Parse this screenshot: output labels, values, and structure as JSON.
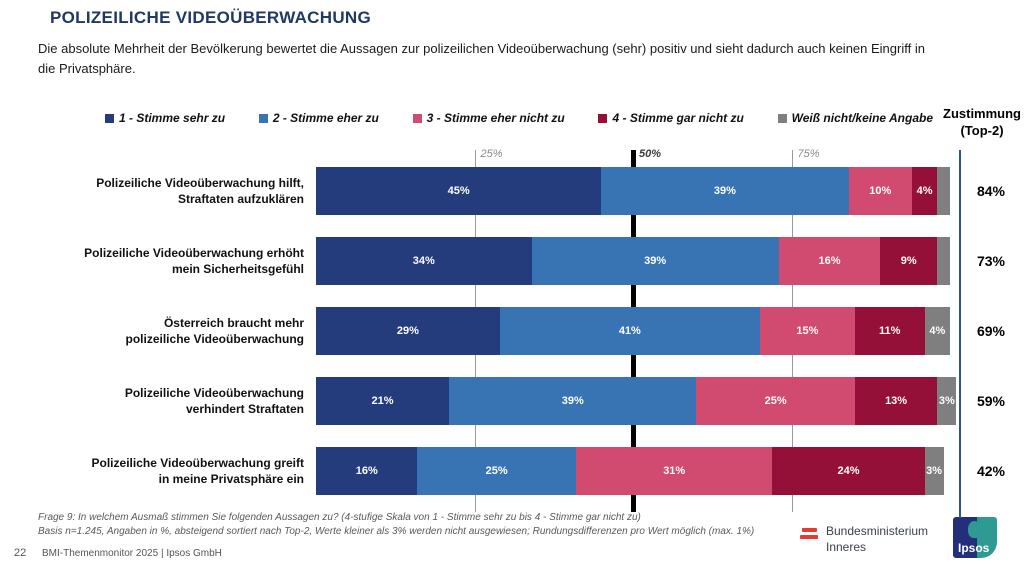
{
  "slide": {
    "title": "POLIZEILICHE VIDEOÜBERWACHUNG",
    "subtitle": "Die absolute Mehrheit der Bevölkerung bewertet die Aussagen zur polizeilichen Videoüberwachung (sehr) positiv und sieht dadurch auch keinen Eingriff in die Privatsphäre.",
    "footnote_line1": "Frage 9:  In welchem Ausmaß stimmen Sie folgenden Aussagen zu? (4-stufige Skala von 1 - Stimme sehr zu bis 4 - Stimme gar nicht zu)",
    "footnote_line2": "Basis n=1.245, Angaben in %, absteigend sortiert nach Top-2, Werte kleiner als 3% werden nicht ausgewiesen; Rundungsdifferenzen pro Wert möglich (max. 1%)",
    "page_number": "22",
    "footer_text": "BMI-Themenmonitor 2025 |  Ipsos GmbH"
  },
  "logos": {
    "ministry_line1": "Bundesministerium",
    "ministry_line2": "Inneres",
    "ipsos": "Ipsos"
  },
  "chart_data": {
    "type": "bar",
    "stacked": true,
    "orientation": "horizontal",
    "x_range": [
      0,
      100
    ],
    "unit": "%",
    "legend_position": "top",
    "top2_header": [
      "Zustimmung",
      "(Top-2)"
    ],
    "gridlines": [
      {
        "label": "25%",
        "position": 25,
        "emphasis": false
      },
      {
        "label": "50%",
        "position": 50,
        "emphasis": true
      },
      {
        "label": "75%",
        "position": 75,
        "emphasis": false
      }
    ],
    "categories": [
      {
        "lines": [
          "Polizeiliche Videoüberwachung hilft,",
          "Straftaten aufzuklären"
        ]
      },
      {
        "lines": [
          "Polizeiliche Videoüberwachung erhöht",
          "mein Sicherheitsgefühl"
        ]
      },
      {
        "lines": [
          "Österreich braucht mehr",
          "polizeiliche Videoüberwachung"
        ]
      },
      {
        "lines": [
          "Polizeiliche Videoüberwachung",
          "verhindert Straftaten"
        ]
      },
      {
        "lines": [
          "Polizeiliche Videoüberwachung greift",
          "in meine Privatsphäre ein"
        ]
      }
    ],
    "series": [
      {
        "name": "1 - Stimme sehr zu",
        "color": "#253C7C",
        "values": [
          45,
          34,
          29,
          21,
          16
        ],
        "labels": [
          "45%",
          "34%",
          "29%",
          "21%",
          "16%"
        ]
      },
      {
        "name": "2 - Stimme eher zu",
        "color": "#3873B4",
        "values": [
          39,
          39,
          41,
          39,
          25
        ],
        "labels": [
          "39%",
          "39%",
          "41%",
          "39%",
          "25%"
        ]
      },
      {
        "name": "3 - Stimme eher nicht zu",
        "color": "#D14A6F",
        "values": [
          10,
          16,
          15,
          25,
          31
        ],
        "labels": [
          "10%",
          "16%",
          "15%",
          "25%",
          "31%"
        ]
      },
      {
        "name": "4 - Stimme gar nicht zu",
        "color": "#951038",
        "values": [
          4,
          9,
          11,
          13,
          24
        ],
        "labels": [
          "4%",
          "9%",
          "11%",
          "13%",
          "24%"
        ]
      },
      {
        "name": "Weiß nicht/keine Angabe",
        "color": "#7F7F7F",
        "values": [
          2,
          2,
          4,
          3,
          3
        ],
        "labels": [
          "",
          "",
          "4%",
          "3%",
          "3%"
        ]
      }
    ],
    "top2": [
      "84%",
      "73%",
      "69%",
      "59%",
      "42%"
    ]
  }
}
